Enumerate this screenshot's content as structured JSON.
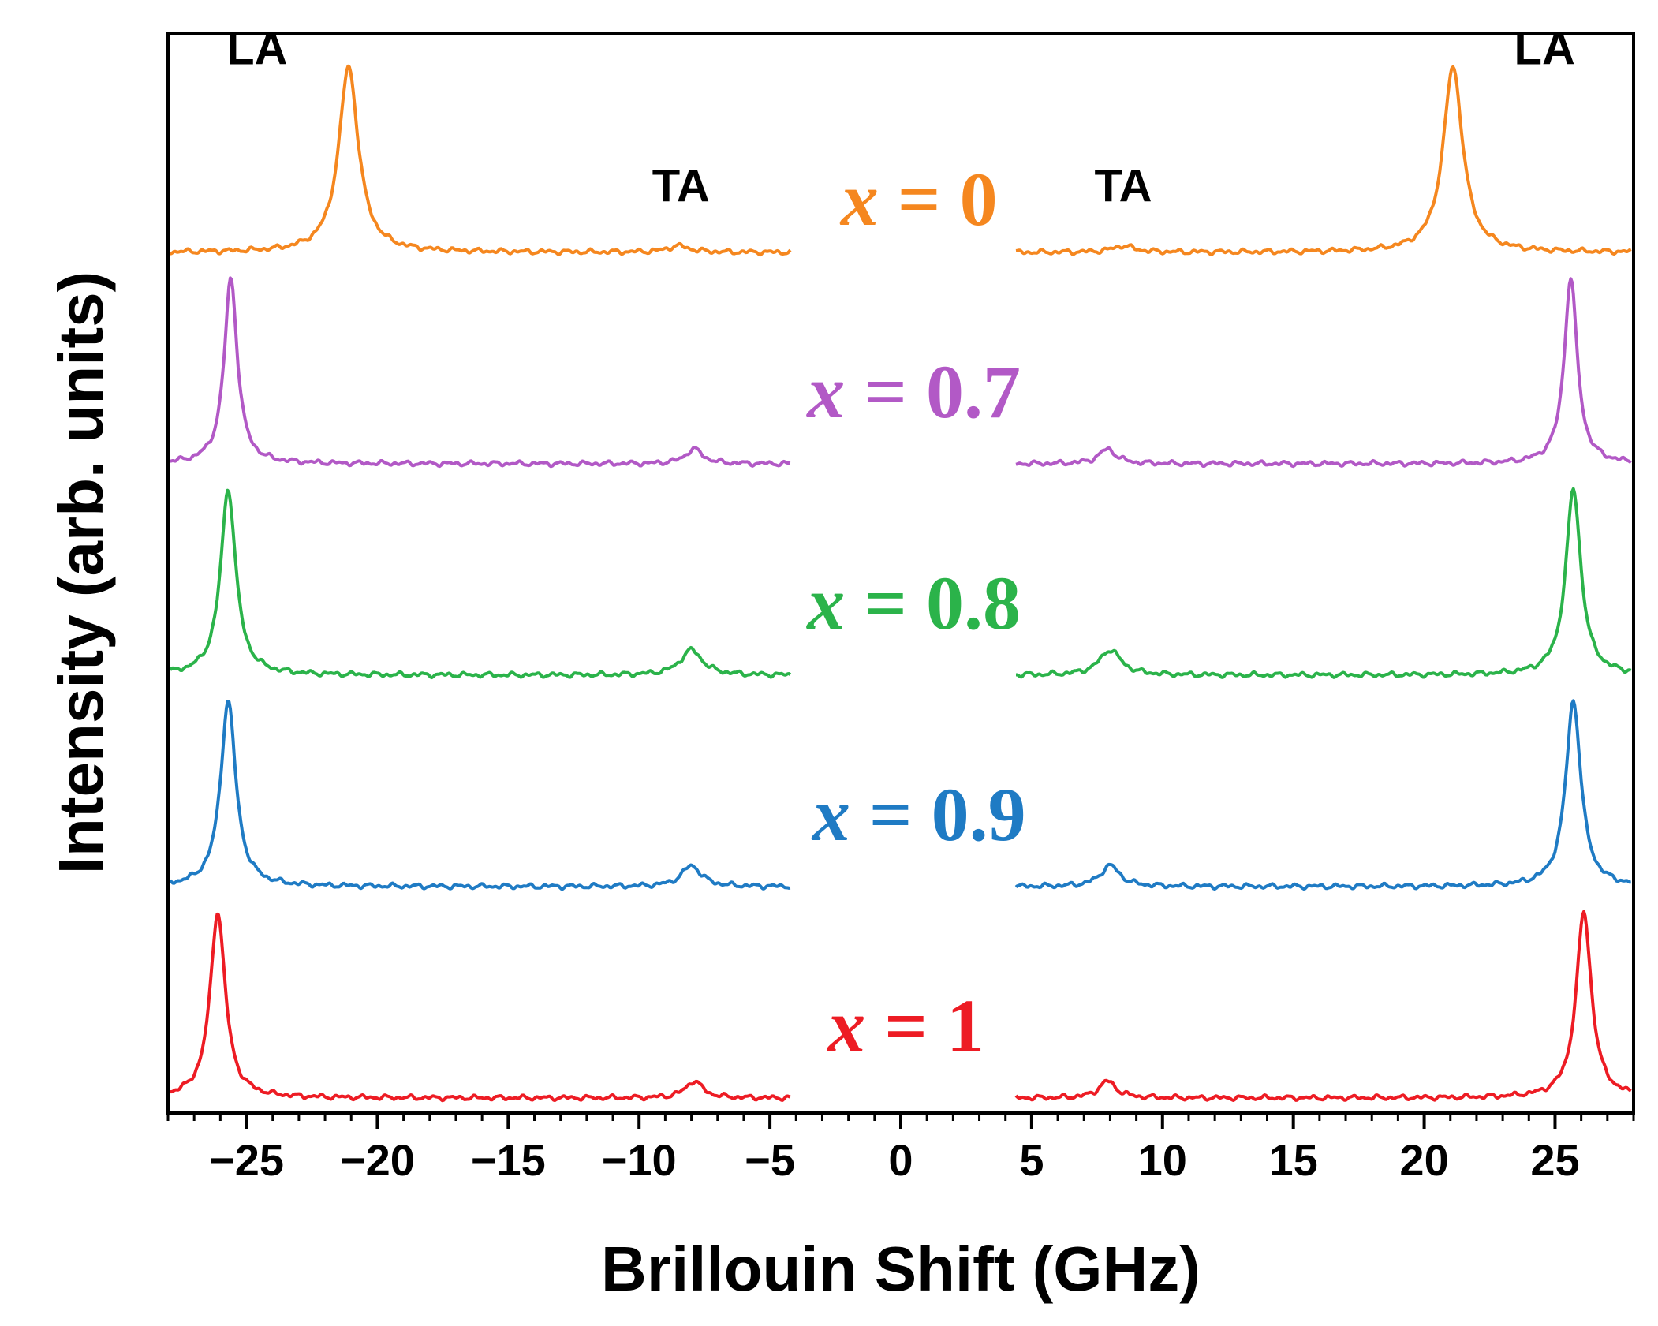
{
  "chart_data": {
    "type": "line",
    "xlabel": "Brillouin Shift (GHz)",
    "ylabel": "Intensity (arb. units)",
    "xlim": [
      -28,
      28
    ],
    "x_ticks": [
      -25,
      -20,
      -15,
      -10,
      -5,
      0,
      5,
      10,
      15,
      20,
      25
    ],
    "x_tick_labels": [
      "−25",
      "−20",
      "−15",
      "−10",
      "−5",
      "0",
      "5",
      "10",
      "15",
      "20",
      "25"
    ],
    "x_minor_step": 1,
    "y_ticks_shown": false,
    "grid": false,
    "gap_range": [
      -4.2,
      4.4
    ],
    "peak_labels": [
      {
        "text": "LA",
        "x": -24.6,
        "level": 4.92
      },
      {
        "text": "TA",
        "x": -8.4,
        "level": 4.27
      },
      {
        "text": "TA",
        "x": 8.5,
        "level": 4.27
      },
      {
        "text": "LA",
        "x": 24.6,
        "level": 4.92
      }
    ],
    "series": [
      {
        "label_var": "x",
        "label_rest": " = 0",
        "color": "#f5871f",
        "offset": 4.0,
        "la": 21.1,
        "la_amp": 0.88,
        "la_w": 0.45,
        "ta": 8.5,
        "ta_amp": 0.03,
        "ta_w": 0.5,
        "label_x": 0.7,
        "label_level": 4.16
      },
      {
        "label_var": "x",
        "label_rest": " = 0.7",
        "color": "#b259c6",
        "offset": 3.0,
        "la": 25.6,
        "la_amp": 0.88,
        "la_w": 0.3,
        "ta": 7.9,
        "ta_amp": 0.07,
        "ta_w": 0.4,
        "label_x": 0.5,
        "label_level": 3.25
      },
      {
        "label_var": "x",
        "label_rest": " = 0.8",
        "color": "#2bb34a",
        "offset": 2.0,
        "la": 25.7,
        "la_amp": 0.88,
        "la_w": 0.35,
        "ta": 8.0,
        "ta_amp": 0.12,
        "ta_w": 0.5,
        "label_x": 0.5,
        "label_level": 2.25
      },
      {
        "label_var": "x",
        "label_rest": " = 0.9",
        "color": "#1f7bc4",
        "offset": 1.0,
        "la": 25.7,
        "la_amp": 0.88,
        "la_w": 0.35,
        "ta": 8.0,
        "ta_amp": 0.1,
        "ta_w": 0.45,
        "label_x": 0.7,
        "label_level": 1.25
      },
      {
        "label_var": "x",
        "label_rest": " = 1",
        "color": "#ed1c24",
        "offset": 0.0,
        "la": 26.1,
        "la_amp": 0.88,
        "la_w": 0.35,
        "ta": 7.9,
        "ta_amp": 0.08,
        "ta_w": 0.4,
        "label_x": 0.2,
        "label_level": 0.25
      }
    ]
  }
}
